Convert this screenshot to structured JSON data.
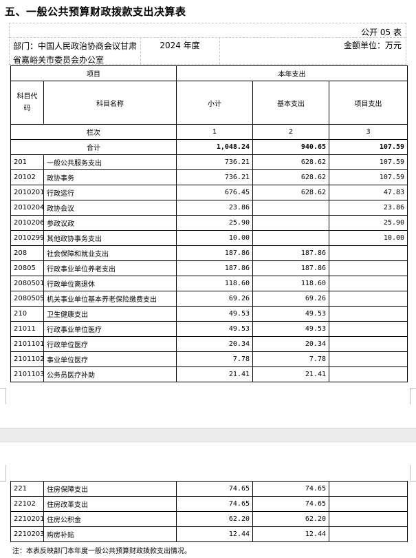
{
  "title": "五、一般公共预算财政拨款支出决算表",
  "form_code": "公开 05 表",
  "department": "部门：中国人民政治协商会议甘肃省嘉峪关市委员会办公室",
  "year": "2024 年度",
  "unit": "金额单位：万元",
  "headers": {
    "item": "项目",
    "current_year": "本年支出",
    "code": "科目代码",
    "name": "科目名称",
    "subtotal": "小计",
    "basic": "基本支出",
    "project": "项目支出",
    "column_no": "栏次",
    "col1": "1",
    "col2": "2",
    "col3": "3",
    "total": "合计"
  },
  "totals": {
    "subtotal": "1,048.24",
    "basic": "940.65",
    "project": "107.59"
  },
  "rows": [
    {
      "code": "201",
      "name": "一般公共服务支出",
      "subtotal": "736.21",
      "basic": "628.62",
      "project": "107.59"
    },
    {
      "code": "20102",
      "name": "政协事务",
      "subtotal": "736.21",
      "basic": "628.62",
      "project": "107.59"
    },
    {
      "code": "2010201",
      "name": "行政运行",
      "subtotal": "676.45",
      "basic": "628.62",
      "project": "47.83"
    },
    {
      "code": "2010204",
      "name": "政协会议",
      "subtotal": "23.86",
      "basic": "",
      "project": "23.86"
    },
    {
      "code": "2010206",
      "name": "参政议政",
      "subtotal": "25.90",
      "basic": "",
      "project": "25.90"
    },
    {
      "code": "2010299",
      "name": "其他政协事务支出",
      "subtotal": "10.00",
      "basic": "",
      "project": "10.00"
    },
    {
      "code": "208",
      "name": "社会保障和就业支出",
      "subtotal": "187.86",
      "basic": "187.86",
      "project": ""
    },
    {
      "code": "20805",
      "name": "行政事业单位养老支出",
      "subtotal": "187.86",
      "basic": "187.86",
      "project": ""
    },
    {
      "code": "2080501",
      "name": "行政单位离退休",
      "subtotal": "118.60",
      "basic": "118.60",
      "project": ""
    },
    {
      "code": "2080505",
      "name": "机关事业单位基本养老保险缴费支出",
      "subtotal": "69.26",
      "basic": "69.26",
      "project": ""
    },
    {
      "code": "210",
      "name": "卫生健康支出",
      "subtotal": "49.53",
      "basic": "49.53",
      "project": ""
    },
    {
      "code": "21011",
      "name": "行政事业单位医疗",
      "subtotal": "49.53",
      "basic": "49.53",
      "project": ""
    },
    {
      "code": "2101101",
      "name": "行政单位医疗",
      "subtotal": "20.34",
      "basic": "20.34",
      "project": ""
    },
    {
      "code": "2101102",
      "name": "事业单位医疗",
      "subtotal": "7.78",
      "basic": "7.78",
      "project": ""
    },
    {
      "code": "2101103",
      "name": "公务员医疗补助",
      "subtotal": "21.41",
      "basic": "21.41",
      "project": ""
    }
  ],
  "rows_page2": [
    {
      "code": "221",
      "name": "住房保障支出",
      "subtotal": "74.65",
      "basic": "74.65",
      "project": ""
    },
    {
      "code": "22102",
      "name": "住房改革支出",
      "subtotal": "74.65",
      "basic": "74.65",
      "project": ""
    },
    {
      "code": "2210201",
      "name": "住房公积金",
      "subtotal": "62.20",
      "basic": "62.20",
      "project": ""
    },
    {
      "code": "2210203",
      "name": "购房补贴",
      "subtotal": "12.44",
      "basic": "12.44",
      "project": ""
    }
  ],
  "note": "注：本表反映部门本年度一般公共预算财政拨款支出情况。"
}
